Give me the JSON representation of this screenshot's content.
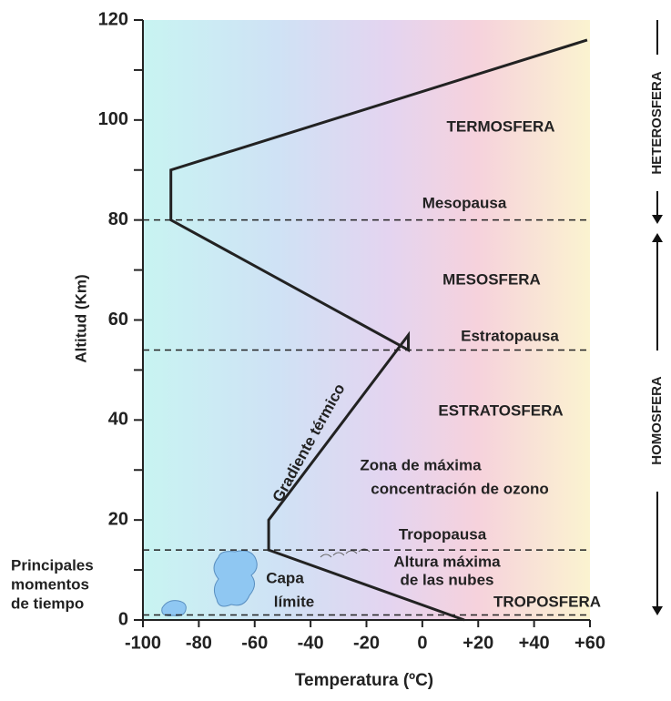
{
  "chart_data": {
    "type": "line",
    "x": [
      15,
      -55,
      -55,
      -5,
      -5,
      -90,
      -90,
      59
    ],
    "y": [
      0,
      14,
      20,
      57,
      54,
      80,
      90,
      116
    ],
    "color": "#222222",
    "xlabel": "Temperatura (ºC)",
    "ylabel": "Altitud (Km)",
    "xlim": [
      -100,
      60
    ],
    "ylim": [
      0,
      120
    ],
    "xticks": [
      -100,
      -80,
      -60,
      -40,
      -20,
      0,
      {
        "value": 20,
        "label": "+20"
      },
      {
        "value": 40,
        "label": "+40"
      },
      {
        "value": 60,
        "label": "+60"
      }
    ],
    "yticks": [
      0,
      20,
      40,
      60,
      80,
      100,
      120
    ],
    "yminor": [
      10,
      30,
      50,
      70,
      90,
      110
    ],
    "dashed_lines": [
      80,
      54,
      14,
      1
    ],
    "annotations": {
      "termosfera": "TERMOSFERA",
      "mesopausa": "Mesopausa",
      "mesosfera": "MESOSFERA",
      "estratopausa": "Estratopausa",
      "estratosfera": "ESTRATOSFERA",
      "zona1": "Zona de máxima",
      "zona2": "concentración de ozono",
      "tropopausa": "Tropopausa",
      "altura1": "Altura máxima",
      "altura2": "de las nubes",
      "troposfera": "TROPOSFERA",
      "capa1": "Capa",
      "capa2": "límite",
      "gradiente": "Gradiente térmico",
      "heterosfera": "HETEROSFERA",
      "homosfera": "HOMOSFERA",
      "principales1": "Principales",
      "principales2": "momentos",
      "principales3": "de tiempo"
    }
  }
}
